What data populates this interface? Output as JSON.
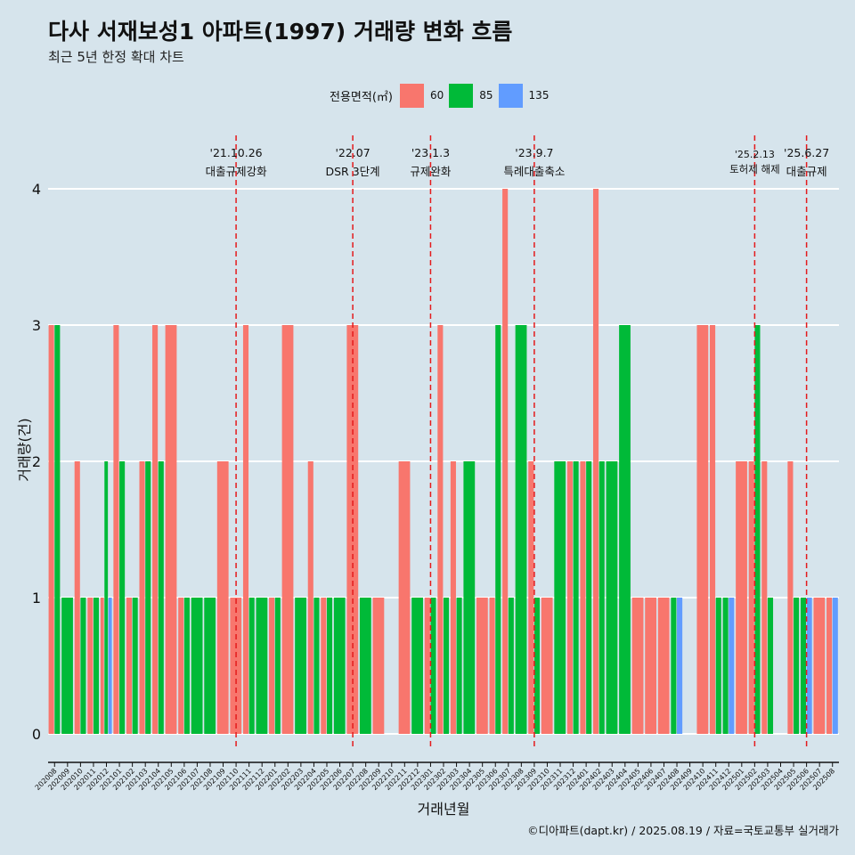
{
  "chart_data": {
    "type": "bar",
    "title": "다사 서재보성1 아파트(1997) 거래량 변화 흐름",
    "subtitle": "최근 5년 한정 확대 차트",
    "xlabel": "거래년월",
    "ylabel": "거래량(건)",
    "ylim": [
      0,
      4
    ],
    "yticks": [
      "0",
      "1",
      "2",
      "3",
      "4"
    ],
    "grid": true,
    "legend": {
      "title": "전용면적(㎡)",
      "position": "top",
      "entries": [
        "60",
        "85",
        "135"
      ]
    },
    "colors": {
      "60": "#f8766d",
      "85": "#00ba38",
      "135": "#619cff"
    },
    "categories": [
      "202008",
      "202009",
      "202010",
      "202011",
      "202012",
      "202101",
      "202102",
      "202103",
      "202104",
      "202105",
      "202106",
      "202107",
      "202108",
      "202109",
      "202110",
      "202111",
      "202112",
      "202201",
      "202202",
      "202203",
      "202204",
      "202205",
      "202206",
      "202207",
      "202208",
      "202209",
      "202210",
      "202211",
      "202212",
      "202301",
      "202302",
      "202303",
      "202304",
      "202305",
      "202306",
      "202307",
      "202308",
      "202309",
      "202310",
      "202311",
      "202312",
      "202401",
      "202402",
      "202403",
      "202404",
      "202405",
      "202406",
      "202407",
      "202408",
      "202409",
      "202410",
      "202411",
      "202412",
      "202501",
      "202502",
      "202503",
      "202504",
      "202505",
      "202506",
      "202507",
      "202508"
    ],
    "series": [
      {
        "name": "60",
        "values": [
          3,
          0,
          2,
          1,
          1,
          3,
          1,
          2,
          3,
          3,
          1,
          0,
          0,
          2,
          1,
          3,
          0,
          1,
          3,
          0,
          2,
          1,
          0,
          3,
          0,
          1,
          0,
          2,
          0,
          1,
          3,
          2,
          0,
          1,
          1,
          4,
          0,
          2,
          1,
          0,
          2,
          2,
          4,
          0,
          0,
          1,
          1,
          1,
          0,
          0,
          3,
          3,
          0,
          2,
          2,
          2,
          0,
          2,
          0,
          1,
          1
        ]
      },
      {
        "name": "85",
        "values": [
          3,
          1,
          1,
          1,
          2,
          2,
          1,
          2,
          2,
          0,
          1,
          1,
          1,
          0,
          0,
          1,
          1,
          1,
          0,
          1,
          1,
          1,
          1,
          0,
          1,
          0,
          0,
          0,
          1,
          1,
          1,
          1,
          2,
          0,
          3,
          1,
          3,
          1,
          0,
          2,
          2,
          2,
          2,
          2,
          3,
          0,
          0,
          0,
          1,
          0,
          0,
          1,
          1,
          0,
          3,
          1,
          0,
          1,
          1,
          0,
          0
        ]
      },
      {
        "name": "135",
        "values": [
          0,
          0,
          0,
          0,
          1,
          0,
          0,
          0,
          0,
          0,
          0,
          0,
          0,
          0,
          0,
          0,
          0,
          0,
          0,
          0,
          0,
          0,
          0,
          0,
          0,
          0,
          0,
          0,
          0,
          0,
          0,
          0,
          0,
          0,
          0,
          0,
          0,
          0,
          0,
          0,
          0,
          0,
          0,
          0,
          0,
          0,
          0,
          0,
          1,
          0,
          0,
          0,
          1,
          0,
          0,
          0,
          0,
          0,
          1,
          0,
          1
        ]
      }
    ],
    "annotations": [
      {
        "date_label": "'21.10.26",
        "text": "대출규제강화",
        "at": "202110"
      },
      {
        "date_label": "'22.07",
        "text": "DSR 3단계",
        "at": "202207"
      },
      {
        "date_label": "'23.1.3",
        "text": "규제완화",
        "at": "202301"
      },
      {
        "date_label": "'23.9.7",
        "text": "특례대출축소",
        "at": "202309"
      },
      {
        "date_label": "'25.2.13",
        "text": "토허제 해제",
        "at": "202502"
      },
      {
        "date_label": "'25.6.27",
        "text": "대출규제",
        "at": "202506"
      }
    ],
    "caption": "©디아파트(dapt.kr) / 2025.08.19 / 자료=국토교통부 실거래가"
  }
}
